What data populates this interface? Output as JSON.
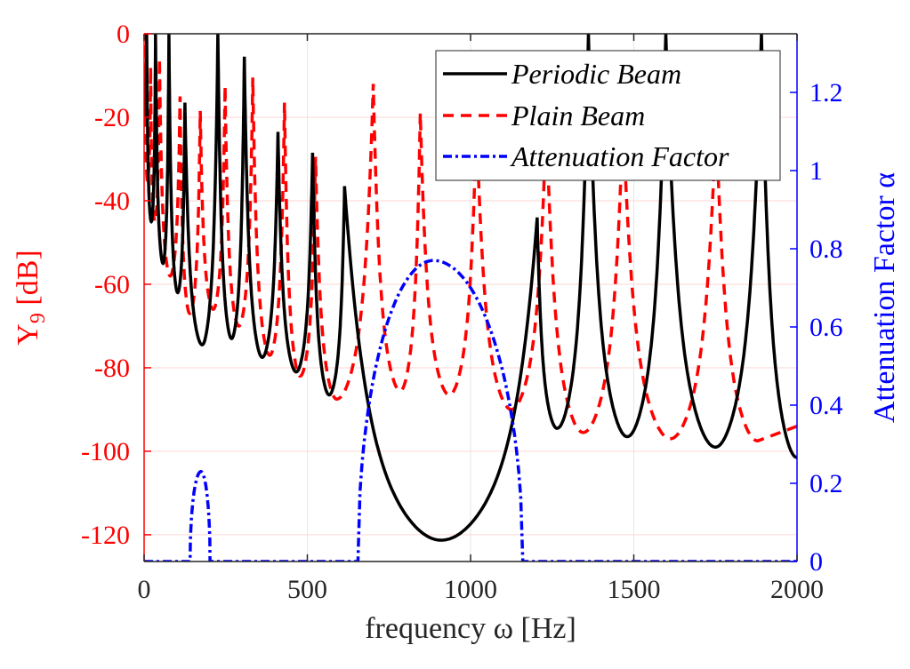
{
  "chart_data": {
    "type": "line",
    "title": "",
    "xlabel": "frequency ω [Hz]",
    "ylabel_left": "Y9 [dB]",
    "ylabel_left_main": "Y",
    "ylabel_left_sub": "9",
    "ylabel_left_unit": " [dB]",
    "ylabel_right": "Attenuation Factor α",
    "xlim": [
      0,
      2000
    ],
    "ylim_left": [
      -126.4,
      0
    ],
    "ylim_right": [
      0,
      1.35
    ],
    "x_ticks": [
      0,
      500,
      1000,
      1500,
      2000
    ],
    "x_tick_labels": [
      "0",
      "500",
      "1000",
      "1500",
      "2000"
    ],
    "y_left_ticks": [
      0,
      -20,
      -40,
      -60,
      -80,
      -100,
      -120
    ],
    "y_left_tick_labels": [
      "0",
      "-20",
      "-40",
      "-60",
      "-80",
      "-100",
      "-120"
    ],
    "y_right_ticks": [
      0,
      0.2,
      0.4,
      0.6,
      0.8,
      1,
      1.2
    ],
    "y_right_tick_labels": [
      "0",
      "0.2",
      "0.4",
      "0.6",
      "0.8",
      "1",
      "1.2"
    ],
    "grid": true,
    "legend_position": "top-right",
    "colors": {
      "periodic": "#000000",
      "plain": "#ff0000",
      "attenuation": "#0000ff",
      "left_axis": "#ff0000",
      "right_axis": "#0000ff",
      "grid": "#ffd6d6"
    },
    "series": [
      {
        "name": "Periodic Beam",
        "axis": "left",
        "style": "solid",
        "peaks": [
          {
            "f": 8,
            "db": 0
          },
          {
            "f": 35,
            "db": 0
          },
          {
            "f": 76,
            "db": 0
          },
          {
            "f": 125,
            "db": -16.5
          },
          {
            "f": 226,
            "db": 0
          },
          {
            "f": 307,
            "db": -5.5
          },
          {
            "f": 410,
            "db": -23.5
          },
          {
            "f": 516,
            "db": -28.5
          },
          {
            "f": 614,
            "db": -36.5
          },
          {
            "f": 1204,
            "db": -44
          },
          {
            "f": 1361,
            "db": 0
          },
          {
            "f": 1598,
            "db": 0
          },
          {
            "f": 1891,
            "db": 0
          }
        ],
        "minima": [
          {
            "f": 0,
            "db": -20
          },
          {
            "f": 22,
            "db": -45
          },
          {
            "f": 58,
            "db": -55
          },
          {
            "f": 103,
            "db": -62
          },
          {
            "f": 178,
            "db": -74.5
          },
          {
            "f": 268,
            "db": -73
          },
          {
            "f": 362,
            "db": -77.5
          },
          {
            "f": 466,
            "db": -81
          },
          {
            "f": 567,
            "db": -86.5
          },
          {
            "f": 910,
            "db": -121.3
          },
          {
            "f": 1265,
            "db": -94.5
          },
          {
            "f": 1480,
            "db": -96.5
          },
          {
            "f": 1750,
            "db": -99
          },
          {
            "f": 2000,
            "db": -101.5
          }
        ]
      },
      {
        "name": "Plain Beam",
        "axis": "left",
        "style": "dashed",
        "peaks": [
          {
            "f": 3,
            "db": 0
          },
          {
            "f": 20,
            "db": -8
          },
          {
            "f": 47,
            "db": -6
          },
          {
            "f": 110,
            "db": -15
          },
          {
            "f": 172,
            "db": -18.5
          },
          {
            "f": 248,
            "db": -12.5
          },
          {
            "f": 333,
            "db": -10.5
          },
          {
            "f": 430,
            "db": -16.5
          },
          {
            "f": 525,
            "db": -29.5
          },
          {
            "f": 702,
            "db": -12
          },
          {
            "f": 846,
            "db": -19
          },
          {
            "f": 1018,
            "db": -20
          },
          {
            "f": 1232,
            "db": -20
          },
          {
            "f": 1467,
            "db": -20
          },
          {
            "f": 1752,
            "db": -20
          }
        ],
        "minima": [
          {
            "f": 0,
            "db": -10
          },
          {
            "f": 10,
            "db": -35
          },
          {
            "f": 33,
            "db": -45
          },
          {
            "f": 80,
            "db": -58
          },
          {
            "f": 140,
            "db": -67
          },
          {
            "f": 212,
            "db": -66
          },
          {
            "f": 290,
            "db": -70
          },
          {
            "f": 385,
            "db": -77
          },
          {
            "f": 478,
            "db": -82
          },
          {
            "f": 590,
            "db": -87.5
          },
          {
            "f": 785,
            "db": -85.5
          },
          {
            "f": 935,
            "db": -86.5
          },
          {
            "f": 1125,
            "db": -90
          },
          {
            "f": 1345,
            "db": -95.5
          },
          {
            "f": 1612,
            "db": -97
          },
          {
            "f": 1880,
            "db": -97.5
          },
          {
            "f": 2000,
            "db": -94
          }
        ]
      },
      {
        "name": "Attenuation Factor",
        "axis": "right",
        "style": "dashdot",
        "bands": [
          {
            "f_start": 141,
            "f_end": 202,
            "f_peak": 174,
            "alpha_peak": 0.23
          },
          {
            "f_start": 655,
            "f_end": 1160,
            "f_peak": 886,
            "alpha_peak": 0.77
          }
        ]
      }
    ]
  },
  "legend": {
    "items": [
      {
        "label": "Periodic Beam"
      },
      {
        "label": "Plain Beam"
      },
      {
        "label": "Attenuation Factor"
      }
    ]
  }
}
